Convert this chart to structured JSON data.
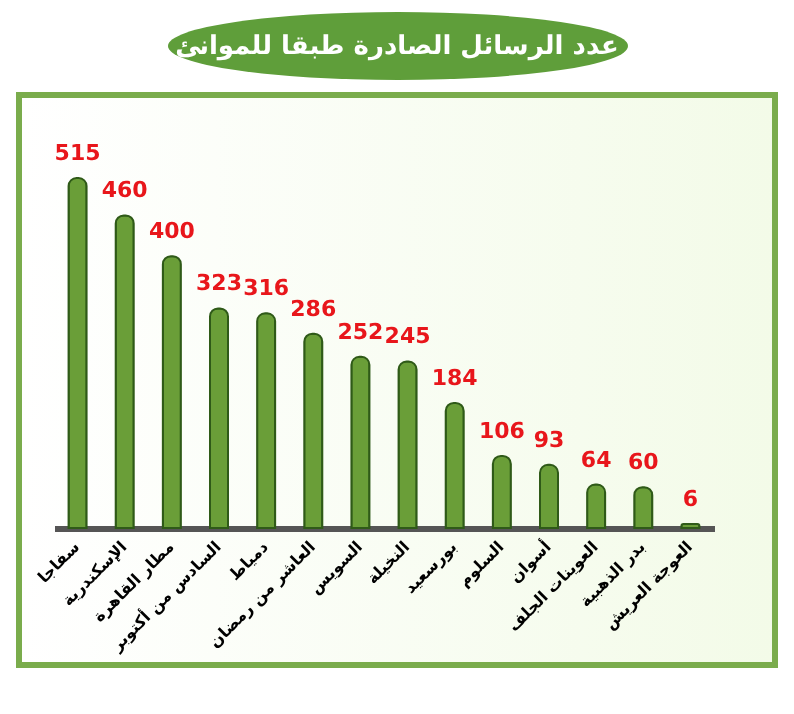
{
  "chart_data": {
    "type": "bar",
    "title": "عدد الرسائل الصادرة طبقا للموانئ",
    "categories": [
      "سفاجا",
      "الإسكندرية",
      "مطار القاهرة",
      "السادس من أكتوبر",
      "دمياط",
      "العاشر من رمضان",
      "السويس",
      "النخيلة",
      "بورسعيد",
      "السلوم",
      "أسوان",
      "العوينات الجلف",
      "بدر الذهبية",
      "العوجة العريش"
    ],
    "values": [
      515,
      460,
      400,
      323,
      316,
      286,
      252,
      245,
      184,
      106,
      93,
      64,
      60,
      6
    ],
    "color": "#6a9e38",
    "data_labels": true,
    "tick_labels": "x"
  }
}
